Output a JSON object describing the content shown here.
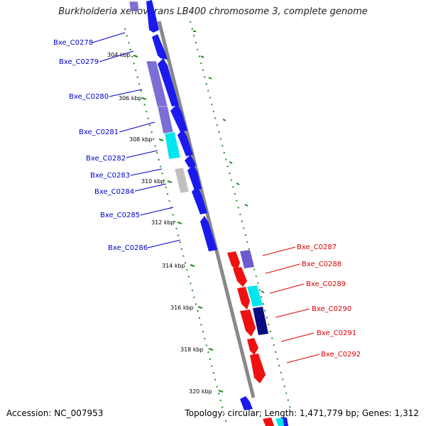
{
  "title": "Burkholderia xenovorans LB400 chromosome 3, complete genome",
  "footer": {
    "accession": "Accession: NC_007953",
    "summary": "Topology: circular; Length: 1,471,779 bp; Genes: 1,312"
  },
  "colors": {
    "forward_gene": "#1a1aee",
    "reverse_gene": "#ee1111",
    "forward_cds_light": "#6a5acd",
    "cyan_feature": "#00e5ee",
    "gray_feature": "#c0c0c0",
    "dark_feature": "#0a0a80",
    "backbone": "#888888",
    "tick_green": "#228b22",
    "forward_label": "#0000cc",
    "reverse_label": "#dd0000"
  },
  "position_ticks": [
    "304 kbp",
    "306 kbp",
    "308 kbp",
    "310 kbp",
    "312 kbp",
    "314 kbp",
    "316 kbp",
    "318 kbp",
    "320 kbp"
  ],
  "forward_genes": [
    {
      "label": "Bxe_C0278"
    },
    {
      "label": "Bxe_C0279"
    },
    {
      "label": "Bxe_C0280"
    },
    {
      "label": "Bxe_C0281"
    },
    {
      "label": "Bxe_C0282"
    },
    {
      "label": "Bxe_C0283"
    },
    {
      "label": "Bxe_C0284"
    },
    {
      "label": "Bxe_C0285"
    },
    {
      "label": "Bxe_C0286"
    }
  ],
  "reverse_genes": [
    {
      "label": "Bxe_C0287"
    },
    {
      "label": "Bxe_C0288"
    },
    {
      "label": "Bxe_C0289"
    },
    {
      "label": "Bxe_C0290"
    },
    {
      "label": "Bxe_C0291"
    },
    {
      "label": "Bxe_C0292"
    }
  ]
}
